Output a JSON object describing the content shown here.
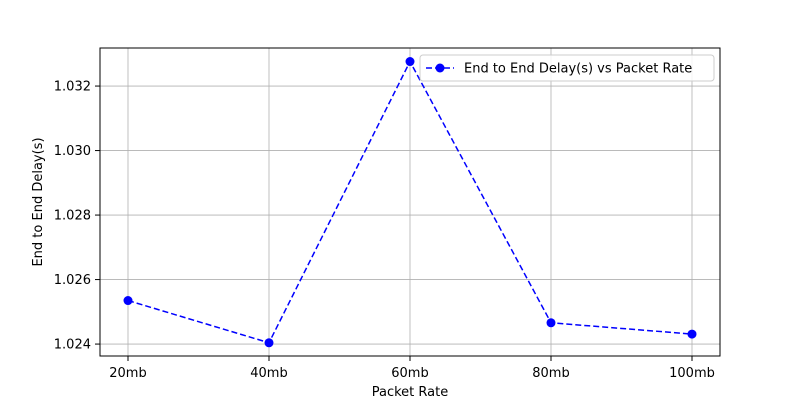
{
  "chart_data": {
    "type": "line",
    "title": "",
    "xlabel": "Packet Rate",
    "ylabel": "End to End Delay(s)",
    "categories": [
      "20mb",
      "40mb",
      "60mb",
      "80mb",
      "100mb"
    ],
    "series": [
      {
        "name": "End to End Delay(s) vs Packet Rate",
        "values": [
          1.02535,
          1.02404,
          1.03276,
          1.02466,
          1.02431
        ],
        "color": "#0000ff",
        "line_style": "dashed",
        "marker": "circle"
      }
    ],
    "ylim": [
      1.02363,
      1.03318
    ],
    "yticks": [
      1.024,
      1.026,
      1.028,
      1.03,
      1.032
    ],
    "ytick_labels": [
      "1.024",
      "1.026",
      "1.028",
      "1.030",
      "1.032"
    ],
    "grid": true,
    "legend_position": "top-right"
  }
}
